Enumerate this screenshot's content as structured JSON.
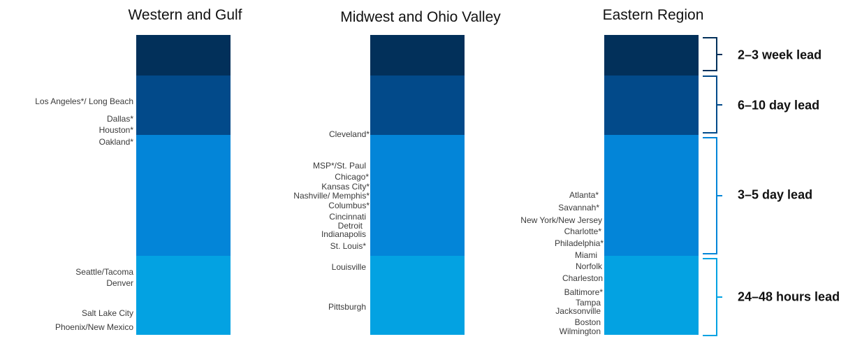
{
  "colors": {
    "band_2_3_week": "#02305a",
    "band_6_10_day": "#024a8a",
    "band_3_5_day": "#0385d8",
    "band_24_48_hours": "#03a2e2",
    "bracket_2_3_week": "#02305a",
    "bracket_6_10_day": "#024a8a",
    "bracket_3_5_day": "#0385d8",
    "bracket_24_48_hours": "#03a2e2"
  },
  "leads": [
    {
      "label": "2–3 week lead"
    },
    {
      "label": "6–10 day lead"
    },
    {
      "label": "3–5 day lead"
    },
    {
      "label": "24–48 hours lead"
    }
  ],
  "regions": [
    {
      "title": "Western and Gulf",
      "cities": [
        "Los Angeles*/ Long Beach",
        "Dallas*",
        "Houston*",
        "Oakland*",
        "Seattle/Tacoma",
        "Denver",
        "Salt Lake City",
        "Phoenix/New Mexico"
      ]
    },
    {
      "title": "Midwest and Ohio Valley",
      "cities": [
        "Cleveland*",
        "MSP*/St. Paul",
        "Chicago*",
        "Kansas City*",
        "Nashville/ Memphis*",
        "Columbus*",
        "Cincinnati",
        "Detroit",
        "Indianapolis",
        "St. Louis*",
        "Louisville",
        "Pittsburgh"
      ]
    },
    {
      "title": "Eastern Region",
      "cities": [
        "Atlanta*",
        "Savannah*",
        "New York/New Jersey",
        "Charlotte*",
        "Philadelphia*",
        "Miami",
        "Norfolk",
        "Charleston",
        "Baltimore*",
        "Tampa",
        "Jacksonville",
        "Boston",
        "Wilmington"
      ]
    }
  ]
}
